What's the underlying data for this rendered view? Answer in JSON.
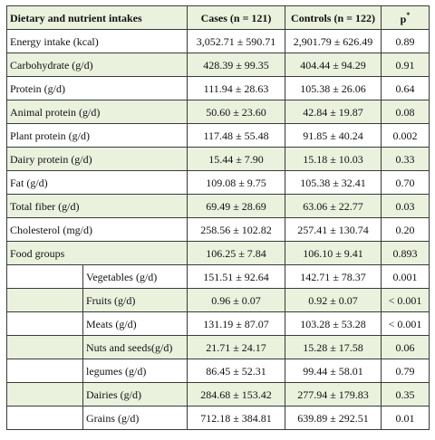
{
  "headers": {
    "label": "Dietary and nutrient intakes",
    "cases": "Cases (n = 121)",
    "controls": "Controls (n = 122)",
    "p_main": "p",
    "p_sup": "*"
  },
  "rows": [
    {
      "label": "Energy intake (kcal)",
      "cases": "3,052.71 ± 590.71",
      "controls": "2,901.79 ± 626.49",
      "p": "0.89"
    },
    {
      "label": "Carbohydrate (g/d)",
      "cases": "428.39 ± 99.35",
      "controls": "404.44 ± 94.29",
      "p": "0.91"
    },
    {
      "label": "Protein (g/d)",
      "cases": "111.94 ± 28.63",
      "controls": "105.38 ± 26.06",
      "p": "0.64"
    },
    {
      "label": "Animal protein (g/d)",
      "cases": "50.60 ± 23.60",
      "controls": "42.84 ± 19.87",
      "p": "0.08"
    },
    {
      "label": "Plant protein (g/d)",
      "cases": "117.48 ± 55.48",
      "controls": "91.85 ± 40.24",
      "p": "0.002"
    },
    {
      "label": "Dairy protein (g/d)",
      "cases": "15.44 ± 7.90",
      "controls": "15.18 ± 10.03",
      "p": "0.33"
    },
    {
      "label": "Fat (g/d)",
      "cases": "109.08 ± 9.75",
      "controls": "105.38 ± 32.41",
      "p": "0.70"
    },
    {
      "label": "Total fiber (g/d)",
      "cases": "69.49 ± 28.69",
      "controls": "63.06 ± 22.77",
      "p": "0.03"
    },
    {
      "label": "Cholesterol (mg/d)",
      "cases": "258.56 ± 102.82",
      "controls": "257.41 ± 130.74",
      "p": "0.20"
    },
    {
      "label": "Food groups",
      "cases": "106.25 ± 7.84",
      "controls": "106.10 ± 9.41",
      "p": "0.893"
    }
  ],
  "subrows": [
    {
      "label": "Vegetables (g/d)",
      "cases": "151.51 ± 92.64",
      "controls": "142.71 ± 78.37",
      "p": "0.001"
    },
    {
      "label": "Fruits (g/d)",
      "cases": "0.96 ± 0.07",
      "controls": "0.92 ± 0.07",
      "p": "< 0.001"
    },
    {
      "label": "Meats (g/d)",
      "cases": "131.19 ± 87.07",
      "controls": "103.28 ± 53.28",
      "p": "< 0.001"
    },
    {
      "label": "Nuts and seeds(g/d)",
      "cases": "21.71 ± 24.17",
      "controls": "15.28 ± 17.58",
      "p": "0.06"
    },
    {
      "label": "legumes (g/d)",
      "cases": "86.45 ± 52.31",
      "controls": "99.44 ± 58.01",
      "p": "0.79"
    },
    {
      "label": "Dairies (g/d)",
      "cases": "284.68 ± 153.42",
      "controls": "277.94 ± 179.83",
      "p": "0.35"
    },
    {
      "label": "Grains (g/d)",
      "cases": "712.18 ± 384.81",
      "controls": "639.89 ± 292.51",
      "p": "0.01"
    }
  ]
}
